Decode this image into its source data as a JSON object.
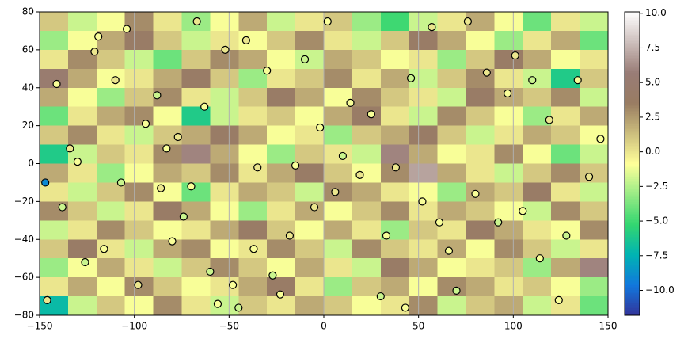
{
  "chart_data": {
    "type": "heatmap",
    "xlim": [
      -150,
      150
    ],
    "ylim": [
      -80,
      80
    ],
    "xticks": [
      {
        "value": -150,
        "label": "−150"
      },
      {
        "value": -100,
        "label": "−100"
      },
      {
        "value": -50,
        "label": "−50"
      },
      0,
      50,
      100,
      150
    ],
    "yticks": [
      {
        "value": -80,
        "label": "−80"
      },
      {
        "value": -60,
        "label": "−60"
      },
      {
        "value": -40,
        "label": "−40"
      },
      {
        "value": -20,
        "label": "−20"
      },
      0,
      20,
      40,
      60,
      80
    ],
    "grid": true,
    "colormap": [
      "#333399",
      "#1177dd",
      "#00b3b3",
      "#33d670",
      "#99eb85",
      "#ffff99",
      "#ccbe7d",
      "#997c62",
      "#997c76",
      "#ccbebb",
      "#ffffff"
    ],
    "clim": [
      -11.8,
      10.1
    ],
    "cticks": [
      {
        "value": -10,
        "label": "−10.0"
      },
      {
        "value": -7.5,
        "label": "−7.5"
      },
      {
        "value": -5,
        "label": "−5.0"
      },
      {
        "value": -2.5,
        "label": "−2.5"
      },
      {
        "value": 0,
        "label": "0.0"
      },
      {
        "value": 2.5,
        "label": "2.5"
      },
      {
        "value": 5,
        "label": "5.0"
      },
      {
        "value": 7.5,
        "label": "7.5"
      },
      {
        "value": 10,
        "label": "10.0"
      }
    ],
    "z": [
      [
        1,
        -2,
        -1,
        3,
        0,
        -3,
        -1,
        2,
        -2,
        0,
        1,
        -3,
        -5,
        -2,
        0,
        2,
        -1,
        -4,
        0,
        -2
      ],
      [
        -3,
        -1,
        2,
        4,
        1,
        -2,
        0,
        -1,
        1,
        3,
        0,
        -2,
        1,
        4,
        2,
        -1,
        -3,
        0,
        2,
        -4
      ],
      [
        0,
        3,
        1,
        -2,
        -4,
        1,
        3,
        2,
        -1,
        -2,
        2,
        1,
        -1,
        0,
        -3,
        1,
        4,
        2,
        -1,
        0
      ],
      [
        5,
        2,
        -1,
        0,
        2,
        4,
        1,
        -3,
        0,
        1,
        3,
        0,
        2,
        -2,
        1,
        3,
        0,
        -2,
        -6,
        1
      ],
      [
        2,
        -1,
        -3,
        1,
        3,
        0,
        -2,
        1,
        4,
        2,
        -1,
        3,
        1,
        0,
        -2,
        4,
        2,
        1,
        3,
        -2
      ],
      [
        -4,
        0,
        2,
        3,
        -1,
        -6,
        -2,
        0,
        1,
        -1,
        2,
        4,
        0,
        -2,
        3,
        1,
        -1,
        -3,
        0,
        2
      ],
      [
        1,
        3,
        0,
        -2,
        1,
        2,
        4,
        2,
        -1,
        0,
        -3,
        1,
        2,
        4,
        1,
        -2,
        0,
        2,
        1,
        -1
      ],
      [
        -6,
        -2,
        1,
        0,
        3,
        6,
        2,
        -1,
        -3,
        1,
        0,
        -2,
        6,
        2,
        -1,
        0,
        3,
        -1,
        -4,
        -2
      ],
      [
        2,
        0,
        -3,
        -1,
        2,
        1,
        3,
        0,
        2,
        4,
        1,
        -1,
        3,
        7,
        2,
        0,
        -2,
        1,
        3,
        1
      ],
      [
        0,
        -2,
        1,
        3,
        -1,
        -4,
        0,
        2,
        1,
        -2,
        3,
        2,
        0,
        -1,
        -3,
        2,
        1,
        4,
        0,
        -2
      ],
      [
        3,
        1,
        -2,
        0,
        4,
        2,
        -1,
        -3,
        0,
        2,
        -1,
        1,
        3,
        0,
        2,
        1,
        -1,
        -2,
        3,
        1
      ],
      [
        -2,
        0,
        3,
        1,
        -1,
        0,
        2,
        4,
        1,
        -1,
        2,
        0,
        -3,
        1,
        0,
        4,
        2,
        0,
        -1,
        3
      ],
      [
        1,
        4,
        0,
        -2,
        2,
        3,
        -1,
        0,
        3,
        1,
        -2,
        3,
        1,
        0,
        2,
        -1,
        3,
        1,
        -2,
        0
      ],
      [
        -3,
        -1,
        2,
        0,
        -2,
        1,
        3,
        1,
        -1,
        2,
        0,
        -2,
        4,
        2,
        -1,
        0,
        1,
        -3,
        2,
        6
      ],
      [
        0,
        2,
        -1,
        3,
        1,
        -1,
        0,
        2,
        4,
        0,
        -3,
        1,
        2,
        -1,
        3,
        2,
        0,
        1,
        -1,
        -3
      ],
      [
        -7,
        -2,
        1,
        -1,
        3,
        0,
        -2,
        1,
        0,
        2,
        1,
        -1,
        0,
        3,
        -2,
        1,
        2,
        -2,
        0,
        -4
      ]
    ],
    "points": {
      "x": [
        -147,
        -146,
        -141,
        -138,
        -134,
        -130,
        -126,
        -121,
        -119,
        -116,
        -110,
        -107,
        -104,
        -98,
        -94,
        -88,
        -86,
        -83,
        -80,
        -77,
        -74,
        -70,
        -67,
        -63,
        -60,
        -56,
        -52,
        -48,
        -45,
        -41,
        -37,
        -35,
        -30,
        -27,
        -23,
        -18,
        -15,
        -10,
        -5,
        -2,
        2,
        6,
        10,
        14,
        19,
        25,
        30,
        33,
        38,
        43,
        46,
        52,
        57,
        61,
        66,
        70,
        76,
        80,
        86,
        92,
        97,
        101,
        105,
        110,
        114,
        119,
        124,
        128,
        134,
        140,
        146
      ],
      "y": [
        -10,
        -72,
        42,
        -23,
        8,
        1,
        -52,
        59,
        67,
        -45,
        44,
        -10,
        71,
        -64,
        21,
        36,
        -13,
        8,
        -41,
        14,
        -28,
        -12,
        75,
        30,
        -57,
        -74,
        60,
        -64,
        -76,
        65,
        -45,
        -2,
        49,
        -59,
        -69,
        -38,
        -1,
        55,
        -23,
        19,
        75,
        -15,
        4,
        32,
        -6,
        26,
        -70,
        -38,
        -2,
        -76,
        45,
        -20,
        72,
        -31,
        -46,
        -67,
        75,
        -16,
        48,
        -31,
        37,
        57,
        -25,
        44,
        -50,
        23,
        -72,
        -38,
        44,
        -7,
        13
      ],
      "values": [
        -9,
        0,
        -1,
        -2,
        0,
        -1,
        -2,
        0,
        -1,
        -1,
        0,
        -2,
        -1,
        0,
        -1,
        -2,
        0,
        -1,
        -1,
        0,
        -2,
        -1,
        0,
        -1,
        -2,
        -1,
        0,
        -1,
        -2,
        0,
        -1,
        0,
        -1,
        -2,
        -1,
        0,
        -1,
        -2,
        0,
        -1,
        -1,
        0,
        -2,
        -1,
        0,
        -1,
        -2,
        -1,
        0,
        -1,
        -2,
        -1,
        0,
        -1,
        -1,
        -2,
        0,
        -1,
        0,
        -2,
        -1,
        0,
        -1,
        -2,
        -1,
        0,
        -1,
        -2,
        -1,
        0,
        -1
      ]
    }
  }
}
